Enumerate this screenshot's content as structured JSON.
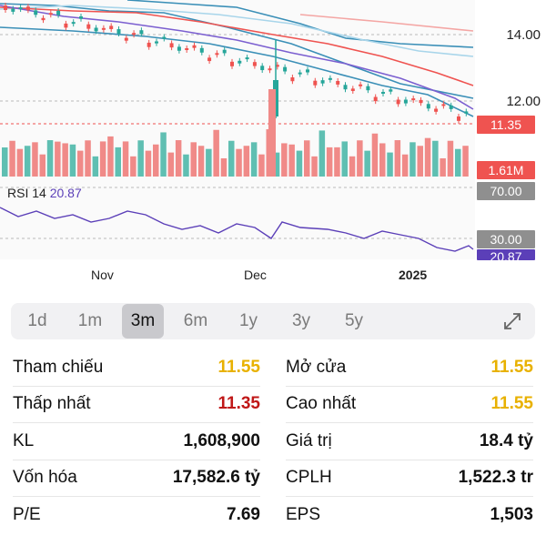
{
  "chart": {
    "price_levels": [
      "14.00",
      "12.00"
    ],
    "current_price": "11.35",
    "volume_tag": "1.61M",
    "rsi_label": "RSI 14",
    "rsi_value": "20.87",
    "rsi_upper": "70.00",
    "rsi_lower": "30.00",
    "rsi_current": "20.87",
    "x_labels": [
      "Nov",
      "Dec",
      "2025"
    ],
    "colors": {
      "up": "#26a69a",
      "down": "#ef5350",
      "rsi": "#5b3fb8",
      "tag_gray": "#8f8f8f"
    }
  },
  "range": {
    "options": [
      "1d",
      "1m",
      "3m",
      "6m",
      "1y",
      "3y",
      "5y"
    ],
    "active": "3m"
  },
  "stats": {
    "rows": [
      {
        "lk": "Tham chiếu",
        "lv": "11.55",
        "rk": "Mở cửa",
        "rv": "11.55"
      },
      {
        "lk": "Thấp nhất",
        "lv": "11.35",
        "rk": "Cao nhất",
        "rv": "11.55"
      },
      {
        "lk": "KL",
        "lv": "1,608,900",
        "rk": "Giá trị",
        "rv": "18.4 tỷ"
      },
      {
        "lk": "Vốn hóa",
        "lv": "17,582.6 tỷ",
        "rk": "CPLH",
        "rv": "1,522.3 tr"
      },
      {
        "lk": "P/E",
        "lv": "7.69",
        "rk": "EPS",
        "rv": "1,503"
      }
    ]
  }
}
